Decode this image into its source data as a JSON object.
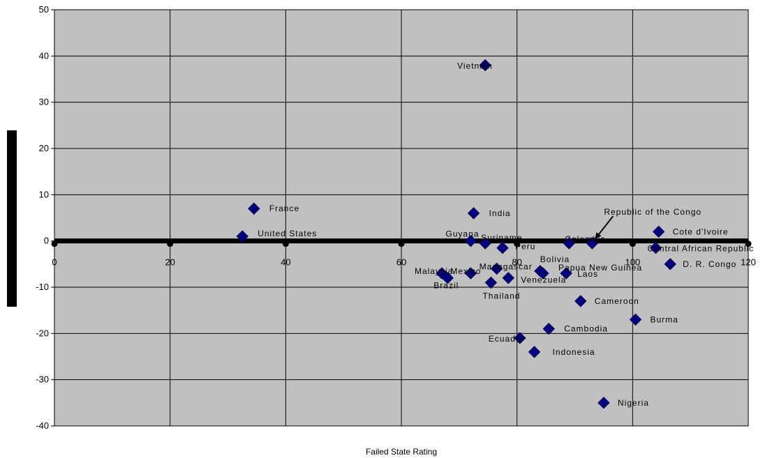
{
  "chart_data": {
    "type": "scatter",
    "title": "",
    "xlabel": "Failed State Rating",
    "ylabel": "",
    "xlim": [
      0,
      120
    ],
    "ylim": [
      -40,
      50
    ],
    "x_ticks": [
      "0",
      "20",
      "40",
      "60",
      "80",
      "100",
      "120"
    ],
    "y_ticks": [
      "50",
      "40",
      "30",
      "20",
      "10",
      "0",
      "-10",
      "-20",
      "-30",
      "-40"
    ],
    "grid": true,
    "plot_background": "#c0c0c0",
    "marker_color": "#000080",
    "reference_line": {
      "y": 0,
      "color": "#000000"
    },
    "points": [
      {
        "label": "Vietnam",
        "x": 74.5,
        "y": 38
      },
      {
        "label": "France",
        "x": 34.5,
        "y": 7
      },
      {
        "label": "United States",
        "x": 32.5,
        "y": 1
      },
      {
        "label": "India",
        "x": 72.5,
        "y": 6
      },
      {
        "label": "Guyana",
        "x": 72,
        "y": 0
      },
      {
        "label": "Suriname",
        "x": 74.5,
        "y": -0.5
      },
      {
        "label": "Peru",
        "x": 77.5,
        "y": -1.5
      },
      {
        "label": "Madagascar",
        "x": 76.5,
        "y": -6
      },
      {
        "label": "Mexico",
        "x": 72,
        "y": -7
      },
      {
        "label": "Malaysia",
        "x": 67,
        "y": -7
      },
      {
        "label": "Brazil",
        "x": 68,
        "y": -8
      },
      {
        "label": "Venezuela",
        "x": 78.5,
        "y": -8
      },
      {
        "label": "Thailand",
        "x": 75.5,
        "y": -9
      },
      {
        "label": "Bolivia",
        "x": 84,
        "y": -6.5
      },
      {
        "label": "Papua New Guinea",
        "x": 84.5,
        "y": -7
      },
      {
        "label": "Laos",
        "x": 88.5,
        "y": -7
      },
      {
        "label": "Colombia",
        "x": 89,
        "y": -0.5
      },
      {
        "label": "Republic of the Congo",
        "x": 93,
        "y": -0.5
      },
      {
        "label": "Cameroon",
        "x": 91,
        "y": -13
      },
      {
        "label": "Cambodia",
        "x": 85.5,
        "y": -19
      },
      {
        "label": "Ecuador",
        "x": 80.5,
        "y": -21
      },
      {
        "label": "Indonesia",
        "x": 83,
        "y": -24
      },
      {
        "label": "Nigeria",
        "x": 95,
        "y": -35
      },
      {
        "label": "Burma",
        "x": 100.5,
        "y": -17
      },
      {
        "label": "Cote d'Ivoire",
        "x": 104.5,
        "y": 2
      },
      {
        "label": "Central African Republic",
        "x": 104,
        "y": -1.5
      },
      {
        "label": "D. R. Congo",
        "x": 106.5,
        "y": -5
      }
    ]
  }
}
